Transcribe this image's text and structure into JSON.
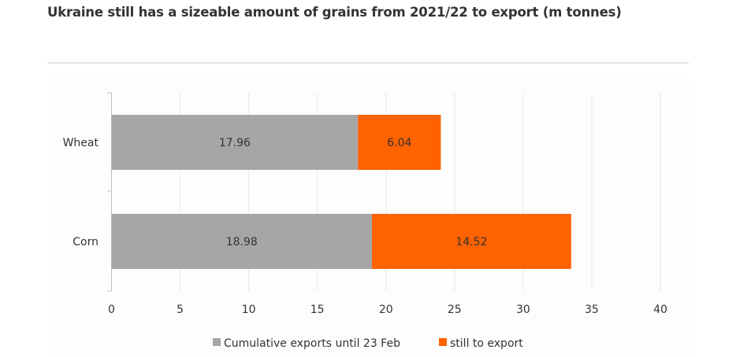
{
  "chart_data": {
    "type": "bar",
    "orientation": "horizontal",
    "stacked": true,
    "title": "Ukraine still has a sizeable amount of grains from 2021/22 to export (m tonnes)",
    "categories": [
      "Wheat",
      "Corn"
    ],
    "series": [
      {
        "name": "Cumulative exports until 23 Feb",
        "values": [
          17.96,
          18.98
        ],
        "color": "#a6a6a6",
        "labels": [
          "17.96",
          "18.98"
        ]
      },
      {
        "name": "still to export",
        "values": [
          6.04,
          14.52
        ],
        "color": "#ff6200",
        "labels": [
          "6.04",
          "14.52"
        ]
      }
    ],
    "xlim": [
      0,
      40
    ],
    "xticks": [
      "0",
      "5",
      "10",
      "15",
      "20",
      "25",
      "30",
      "35",
      "40"
    ],
    "grid": true,
    "legend_position": "bottom"
  }
}
